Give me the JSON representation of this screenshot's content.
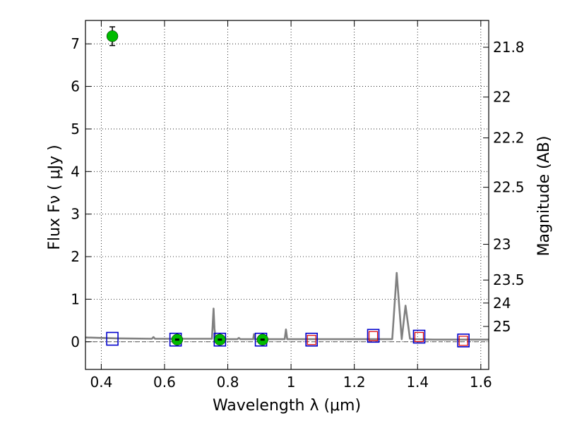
{
  "chart_data": {
    "type": "scatter",
    "xlabel": "Wavelength  λ (μm)",
    "ylabel": "Flux  Fν  ( μJy )",
    "y2label": "Magnitude (AB)",
    "xlim": [
      0.35,
      1.625
    ],
    "ylim": [
      -0.65,
      7.55
    ],
    "grid": true,
    "x_ticks": [
      0.4,
      0.6,
      0.8,
      1.0,
      1.2,
      1.4,
      1.6
    ],
    "x_tick_labels": [
      "0.4",
      "0.6",
      "0.8",
      "1",
      "1.2",
      "1.4",
      "1.6"
    ],
    "y_ticks": [
      0,
      1,
      2,
      3,
      4,
      5,
      6,
      7
    ],
    "y_tick_labels": [
      "0",
      "1",
      "2",
      "3",
      "4",
      "5",
      "6",
      "7"
    ],
    "y2_ticks": [
      {
        "mag": "21.8",
        "flux": 6.92
      },
      {
        "mag": "22",
        "flux": 5.75
      },
      {
        "mag": "22.2",
        "flux": 4.79
      },
      {
        "mag": "22.5",
        "flux": 3.63
      },
      {
        "mag": "23",
        "flux": 2.29
      },
      {
        "mag": "23.5",
        "flux": 1.45
      },
      {
        "mag": "24",
        "flux": 0.91
      },
      {
        "mag": "25",
        "flux": 0.36
      }
    ],
    "model_spectrum": {
      "color": "#808080",
      "x": [
        0.35,
        0.4,
        0.45,
        0.5,
        0.56,
        0.565,
        0.57,
        0.6,
        0.65,
        0.7,
        0.75,
        0.755,
        0.758,
        0.762,
        0.78,
        0.83,
        0.835,
        0.84,
        0.88,
        0.883,
        0.886,
        0.89,
        0.94,
        0.98,
        0.984,
        0.988,
        1.0,
        1.1,
        1.2,
        1.3,
        1.32,
        1.334,
        1.35,
        1.362,
        1.376,
        1.39,
        1.45,
        1.5,
        1.625
      ],
      "y": [
        0.1,
        0.09,
        0.08,
        0.075,
        0.07,
        0.11,
        0.07,
        0.07,
        0.07,
        0.07,
        0.07,
        0.78,
        0.3,
        0.06,
        0.06,
        0.06,
        0.09,
        0.06,
        0.06,
        0.18,
        0.06,
        0.06,
        0.06,
        0.06,
        0.29,
        0.06,
        0.06,
        0.06,
        0.06,
        0.06,
        0.06,
        1.62,
        0.06,
        0.85,
        0.07,
        0.06,
        0.05,
        0.05,
        0.05
      ]
    },
    "model_photometry": {
      "color": "#0000cc",
      "x": [
        0.435,
        0.635,
        0.775,
        0.905,
        1.065,
        1.26,
        1.405,
        1.545
      ],
      "y": [
        0.07,
        0.05,
        0.05,
        0.05,
        0.05,
        0.14,
        0.12,
        0.03
      ]
    },
    "observed_flux": {
      "color": "#00bb00",
      "x": [
        0.435,
        0.64,
        0.775,
        0.91
      ],
      "y": [
        7.18,
        0.05,
        0.05,
        0.05
      ],
      "yerr": [
        0.22,
        0.02,
        0.02,
        0.02
      ]
    },
    "upper_limits": {
      "color": "#dd0000",
      "x": [
        1.065,
        1.26,
        1.405,
        1.545
      ],
      "y": [
        0.05,
        0.14,
        0.12,
        0.03
      ]
    }
  }
}
